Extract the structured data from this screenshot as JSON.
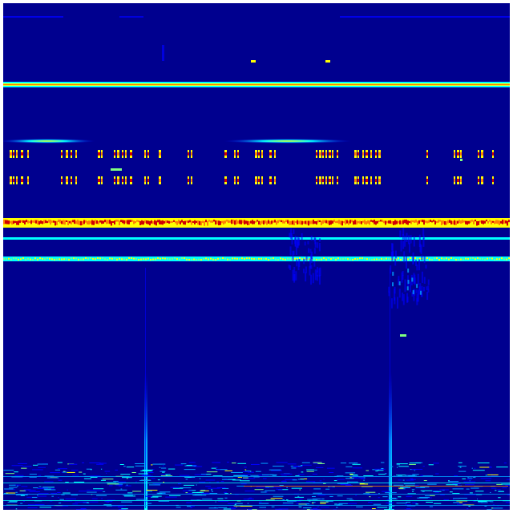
{
  "image": {
    "kind": "spectrogram",
    "colormap": "jet",
    "colors": {
      "background": "#00008f",
      "low": "#0000ff",
      "mid_low": "#00a0ff",
      "cyan": "#00ffff",
      "green": "#80ff80",
      "yellow": "#ffff00",
      "orange": "#ff8000",
      "red": "#d00000"
    }
  }
}
